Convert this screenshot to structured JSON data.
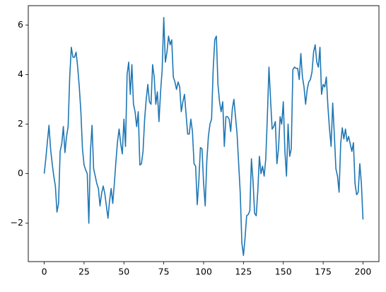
{
  "chart_data": {
    "type": "line",
    "x": [
      0,
      1,
      2,
      3,
      4,
      5,
      6,
      7,
      8,
      9,
      10,
      11,
      12,
      13,
      14,
      15,
      16,
      17,
      18,
      19,
      20,
      21,
      22,
      23,
      24,
      25,
      26,
      27,
      28,
      29,
      30,
      31,
      32,
      33,
      34,
      35,
      36,
      37,
      38,
      39,
      40,
      41,
      42,
      43,
      44,
      45,
      46,
      47,
      48,
      49,
      50,
      51,
      52,
      53,
      54,
      55,
      56,
      57,
      58,
      59,
      60,
      61,
      62,
      63,
      64,
      65,
      66,
      67,
      68,
      69,
      70,
      71,
      72,
      73,
      74,
      75,
      76,
      77,
      78,
      79,
      80,
      81,
      82,
      83,
      84,
      85,
      86,
      87,
      88,
      89,
      90,
      91,
      92,
      93,
      94,
      95,
      96,
      97,
      98,
      99,
      100,
      101,
      102,
      103,
      104,
      105,
      106,
      107,
      108,
      109,
      110,
      111,
      112,
      113,
      114,
      115,
      116,
      117,
      118,
      119,
      120,
      121,
      122,
      123,
      124,
      125,
      126,
      127,
      128,
      129,
      130,
      131,
      132,
      133,
      134,
      135,
      136,
      137,
      138,
      139,
      140,
      141,
      142,
      143,
      144,
      145,
      146,
      147,
      148,
      149,
      150,
      151,
      152,
      153,
      154,
      155,
      156,
      157,
      158,
      159,
      160,
      161,
      162,
      163,
      164,
      165,
      166,
      167,
      168,
      169,
      170,
      171,
      172,
      173,
      174,
      175,
      176,
      177,
      178,
      179,
      180,
      181,
      182,
      183,
      184,
      185,
      186,
      187,
      188,
      189,
      190,
      191,
      192,
      193,
      194,
      195,
      196,
      197,
      198,
      199,
      200
    ],
    "series": [
      {
        "color": "#1f77b4",
        "values": [
          0,
          0.6,
          1.3,
          1.95,
          1.0,
          0.4,
          -0.1,
          -0.5,
          -1.55,
          -1.2,
          0.9,
          1.2,
          1.9,
          0.85,
          1.5,
          1.9,
          3.9,
          5.1,
          4.7,
          4.7,
          4.9,
          4.3,
          3.5,
          2.5,
          1.0,
          0.35,
          0.15,
          0.0,
          -2.0,
          0.9,
          1.95,
          0.2,
          -0.1,
          -0.4,
          -0.6,
          -1.3,
          -0.8,
          -0.5,
          -0.8,
          -1.3,
          -1.8,
          -1.1,
          -0.6,
          -1.2,
          -0.4,
          0.5,
          1.3,
          1.8,
          1.2,
          0.8,
          2.2,
          1.1,
          4.0,
          4.5,
          3.2,
          4.4,
          2.8,
          2.5,
          1.9,
          2.5,
          0.35,
          0.4,
          0.9,
          2.2,
          3.0,
          3.6,
          2.9,
          2.8,
          4.4,
          3.9,
          2.8,
          3.3,
          2.1,
          3.3,
          4.2,
          6.3,
          4.5,
          4.9,
          5.55,
          5.2,
          5.4,
          3.9,
          3.7,
          3.4,
          3.7,
          3.5,
          2.5,
          2.9,
          3.2,
          2.4,
          1.6,
          1.6,
          2.2,
          1.7,
          0.4,
          0.3,
          -1.25,
          -0.3,
          1.05,
          1.0,
          -0.4,
          -1.3,
          0.5,
          1.5,
          2.0,
          2.2,
          4.2,
          5.4,
          5.55,
          3.6,
          2.9,
          2.5,
          2.9,
          1.1,
          2.3,
          2.3,
          2.2,
          1.7,
          2.6,
          3.0,
          2.3,
          1.6,
          0.4,
          -0.8,
          -2.8,
          -3.3,
          -2.6,
          -1.7,
          -1.65,
          -1.5,
          0.6,
          -0.3,
          -1.6,
          -1.7,
          -0.7,
          0.7,
          0.0,
          0.3,
          -0.1,
          0.6,
          2.3,
          4.3,
          3.0,
          1.8,
          1.9,
          2.1,
          0.4,
          1.0,
          2.3,
          2.0,
          2.9,
          0.9,
          -0.1,
          2.0,
          0.7,
          1.0,
          4.2,
          4.3,
          4.25,
          4.25,
          3.8,
          4.85,
          3.9,
          3.5,
          2.8,
          3.4,
          3.7,
          3.8,
          4.1,
          4.9,
          5.2,
          4.5,
          4.3,
          5.1,
          3.2,
          3.6,
          3.5,
          3.9,
          2.7,
          1.8,
          1.1,
          2.85,
          1.6,
          0.2,
          -0.1,
          -0.75,
          1.2,
          1.85,
          1.4,
          1.8,
          1.3,
          1.5,
          1.2,
          0.9,
          1.25,
          -0.4,
          -0.85,
          -0.75,
          0.4,
          -0.4,
          -1.85
        ]
      }
    ],
    "xlim": [
      -10,
      210
    ],
    "xticks": [
      0,
      25,
      50,
      75,
      100,
      125,
      150,
      175,
      200
    ],
    "ylim": [
      -3.55,
      6.78
    ],
    "yticks": [
      {
        "value": -2,
        "label": "−2"
      },
      0,
      2,
      4,
      6
    ],
    "grid": false
  }
}
